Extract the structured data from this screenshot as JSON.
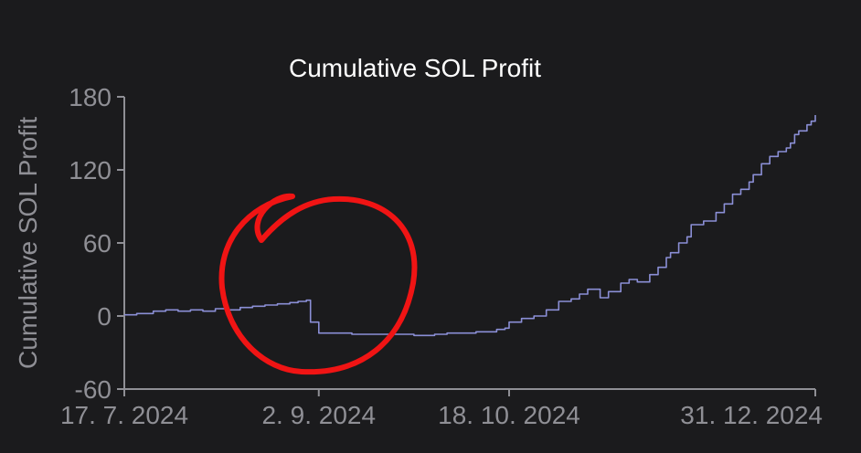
{
  "chart_data": {
    "type": "line",
    "title": "Cumulative SOL Profit",
    "xlabel": "",
    "ylabel": "Cumulative SOL Profit",
    "x_ticks": [
      {
        "date": "2024-07-17",
        "label": "17. 7. 2024"
      },
      {
        "date": "2024-09-02",
        "label": "2. 9. 2024"
      },
      {
        "date": "2024-10-18",
        "label": "18. 10. 2024"
      },
      {
        "date": "2024-12-31",
        "label": "31. 12. 2024"
      }
    ],
    "y_ticks": [
      {
        "value": 180,
        "label": "180"
      },
      {
        "value": 120,
        "label": "120"
      },
      {
        "value": 60,
        "label": "60"
      },
      {
        "value": 0,
        "label": "0"
      },
      {
        "value": -60,
        "label": "-60"
      }
    ],
    "xlim": [
      "2024-07-17",
      "2024-12-31"
    ],
    "ylim": [
      -60,
      180
    ],
    "grid": false,
    "colors": {
      "background": "#1b1b1d",
      "series": "#8b8fd6",
      "annotation": "#f01414"
    },
    "series": [
      {
        "values": [
          [
            "2024-07-17",
            1
          ],
          [
            "2024-07-20",
            2
          ],
          [
            "2024-07-24",
            4
          ],
          [
            "2024-07-27",
            5
          ],
          [
            "2024-07-30",
            4
          ],
          [
            "2024-08-02",
            5
          ],
          [
            "2024-08-05",
            4
          ],
          [
            "2024-08-08",
            6
          ],
          [
            "2024-08-11",
            5
          ],
          [
            "2024-08-14",
            7
          ],
          [
            "2024-08-17",
            8
          ],
          [
            "2024-08-20",
            9
          ],
          [
            "2024-08-23",
            10
          ],
          [
            "2024-08-26",
            11
          ],
          [
            "2024-08-28",
            12
          ],
          [
            "2024-08-30",
            13
          ],
          [
            "2024-08-31",
            13
          ],
          [
            "2024-08-31",
            -5
          ],
          [
            "2024-09-02",
            -6
          ],
          [
            "2024-09-02",
            -14
          ],
          [
            "2024-09-10",
            -15
          ],
          [
            "2024-09-20",
            -15
          ],
          [
            "2024-09-25",
            -16
          ],
          [
            "2024-09-30",
            -15
          ],
          [
            "2024-10-03",
            -14
          ],
          [
            "2024-10-10",
            -13
          ],
          [
            "2024-10-15",
            -11
          ],
          [
            "2024-10-17",
            -10
          ],
          [
            "2024-10-18",
            -5
          ],
          [
            "2024-10-21",
            -2
          ],
          [
            "2024-10-24",
            0
          ],
          [
            "2024-10-27",
            5
          ],
          [
            "2024-10-30",
            12
          ],
          [
            "2024-11-02",
            14
          ],
          [
            "2024-11-04",
            18
          ],
          [
            "2024-11-06",
            22
          ],
          [
            "2024-11-09",
            15
          ],
          [
            "2024-11-11",
            20
          ],
          [
            "2024-11-14",
            27
          ],
          [
            "2024-11-16",
            30
          ],
          [
            "2024-11-18",
            28
          ],
          [
            "2024-11-21",
            34
          ],
          [
            "2024-11-23",
            40
          ],
          [
            "2024-11-25",
            48
          ],
          [
            "2024-11-26",
            52
          ],
          [
            "2024-11-28",
            60
          ],
          [
            "2024-11-30",
            65
          ],
          [
            "2024-12-01",
            75
          ],
          [
            "2024-12-04",
            78
          ],
          [
            "2024-12-07",
            85
          ],
          [
            "2024-12-09",
            92
          ],
          [
            "2024-12-11",
            100
          ],
          [
            "2024-12-13",
            104
          ],
          [
            "2024-12-15",
            110
          ],
          [
            "2024-12-16",
            116
          ],
          [
            "2024-12-18",
            125
          ],
          [
            "2024-12-20",
            131
          ],
          [
            "2024-12-22",
            135
          ],
          [
            "2024-12-24",
            138
          ],
          [
            "2024-12-25",
            142
          ],
          [
            "2024-12-26",
            149
          ],
          [
            "2024-12-27",
            152
          ],
          [
            "2024-12-29",
            157
          ],
          [
            "2024-12-30",
            160
          ],
          [
            "2024-12-31",
            163
          ],
          [
            "2024-12-31",
            165
          ]
        ]
      }
    ]
  }
}
